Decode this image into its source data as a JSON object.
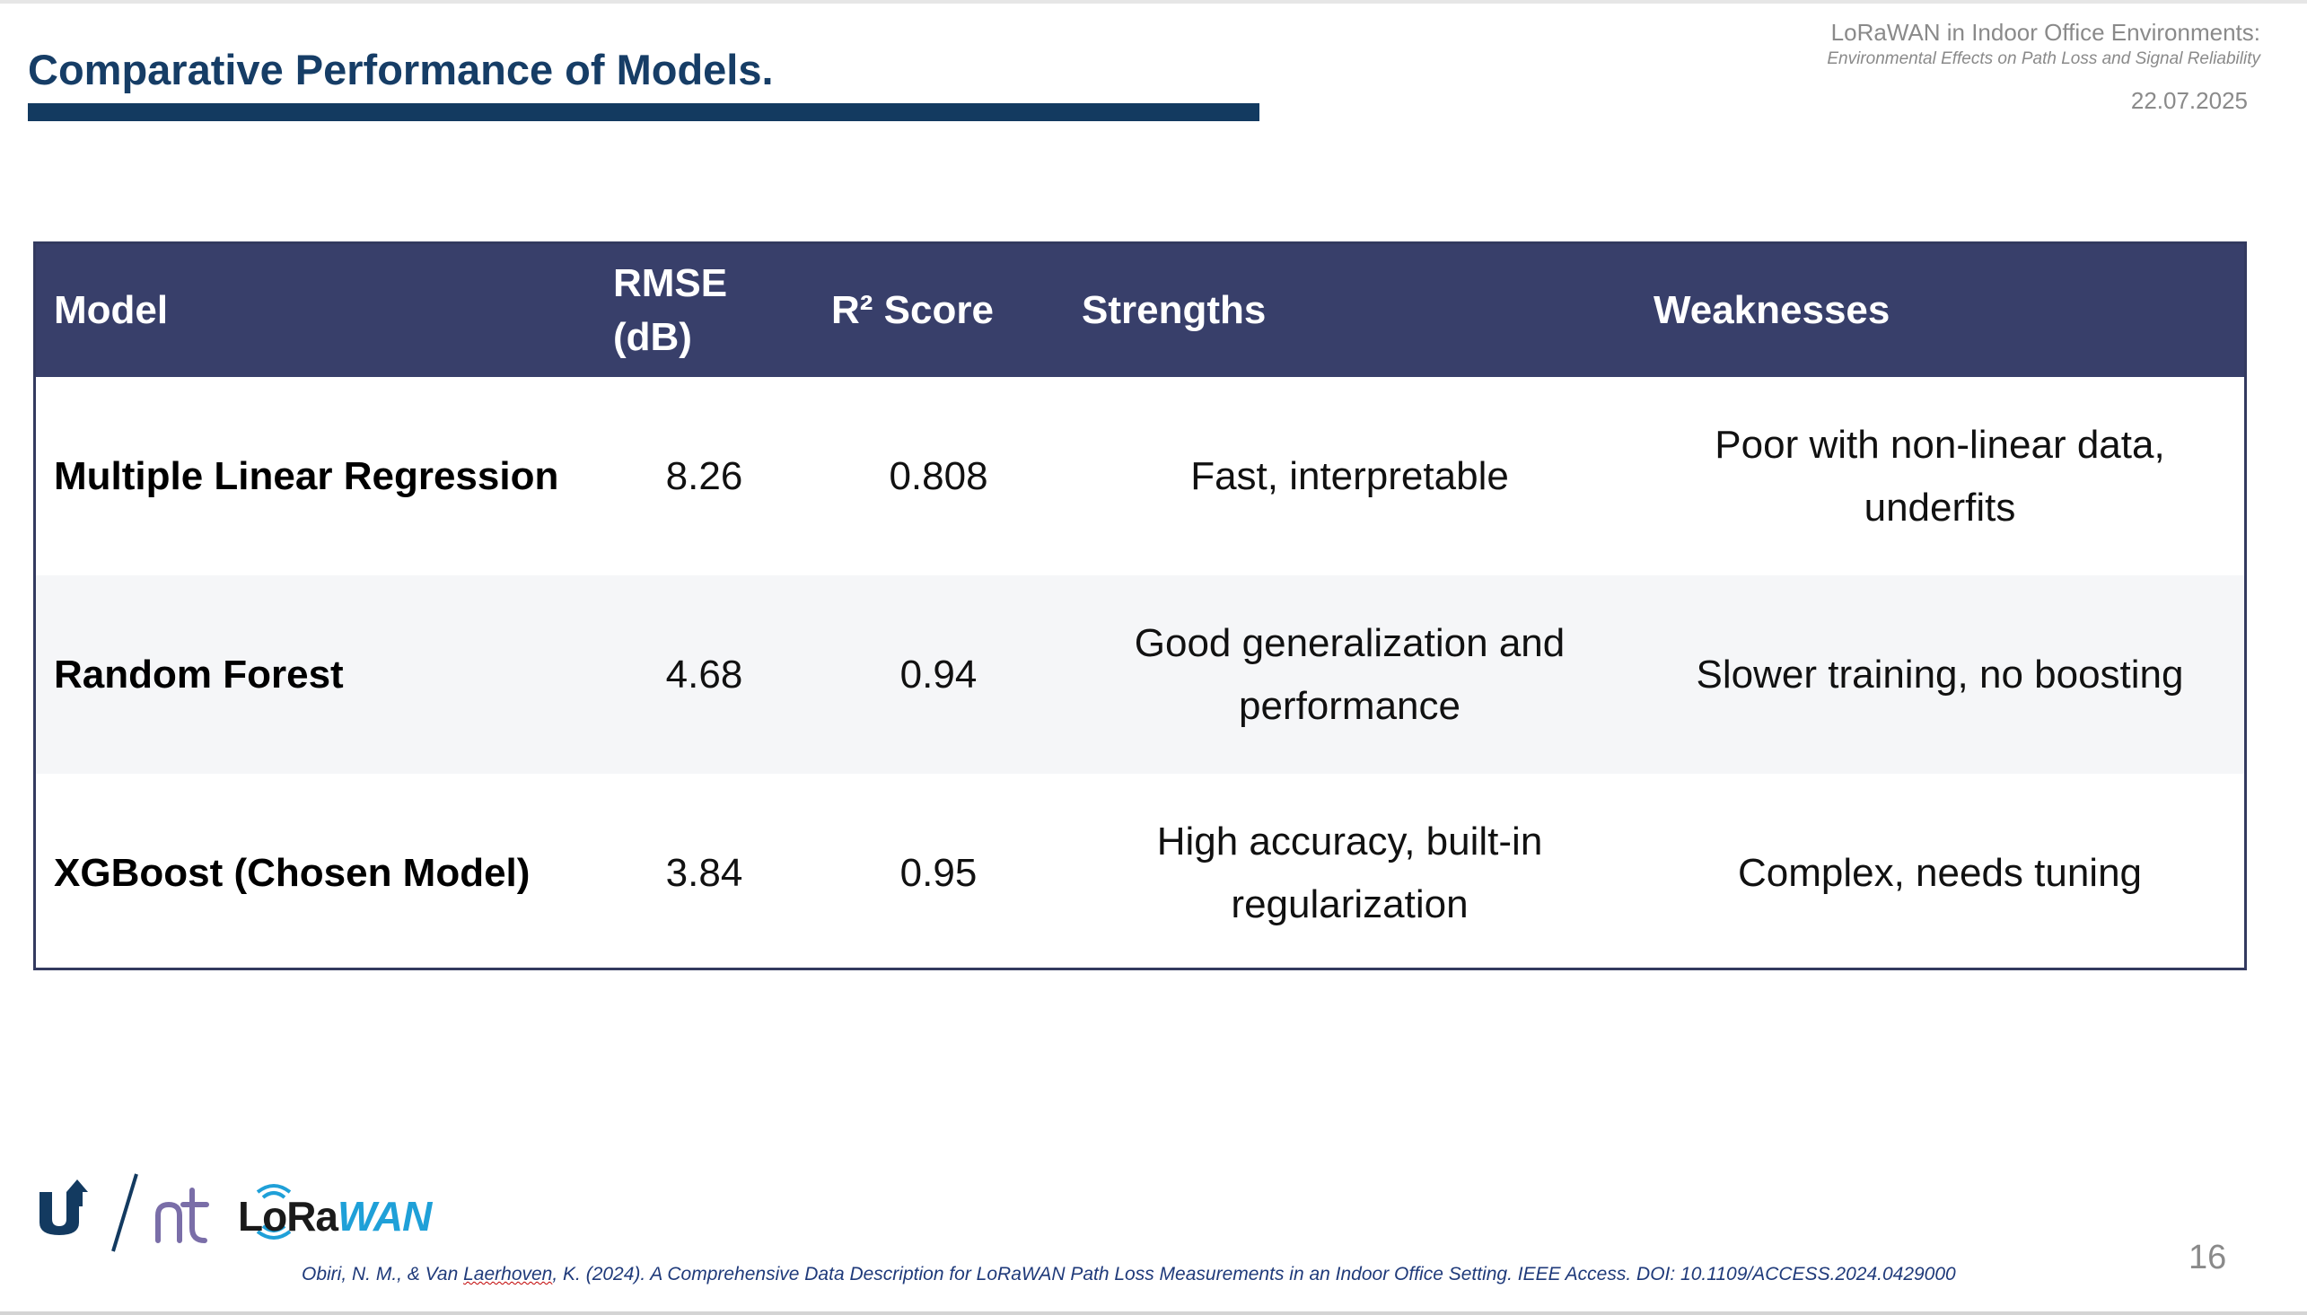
{
  "slide": {
    "title": "Comparative Performance of Models.",
    "header": {
      "line1": "LoRaWAN in Indoor Office Environments:",
      "line2": "Environmental Effects on Path Loss and Signal Reliability",
      "date": "22.07.2025"
    },
    "table": {
      "headers": {
        "model": "Model",
        "rmse_1": "RMSE",
        "rmse_2": "(dB)",
        "r2": "R² Score",
        "strengths": "Strengths",
        "weaknesses": "Weaknesses"
      },
      "rows": [
        {
          "model": "Multiple Linear Regression",
          "rmse": "8.26",
          "r2": "0.808",
          "strengths": "Fast, interpretable",
          "weaknesses": "Poor with non-linear data, underfits"
        },
        {
          "model": "Random Forest",
          "rmse": "4.68",
          "r2": "0.94",
          "strengths": "Good generalization and performance",
          "weaknesses": "Slower training, no boosting"
        },
        {
          "model": "XGBoost (Chosen Model)",
          "rmse": "3.84",
          "r2": "0.95",
          "strengths": "High accuracy, built-in regularization",
          "weaknesses": "Complex, needs tuning"
        }
      ]
    },
    "citation": {
      "before": "Obiri, N. M., & Van ",
      "underlined": "Laerhoven",
      "after": ", K. (2024). A Comprehensive Data Description for LoRaWAN Path Loss Measurements in an Indoor Office Setting. IEEE Access. DOI: 10.1109/ACCESS.2024.0429000"
    },
    "page_number": "16",
    "logos": {
      "lora_text_lo": "Lo",
      "lora_text_ra": "Ra",
      "lora_text_wan": "WAN"
    },
    "colors": {
      "title": "#163d66",
      "title_bar": "#133a60",
      "table_header": "#383f6a",
      "row_shade": "#f5f6f8",
      "lora_blue": "#1fa0d8"
    }
  }
}
